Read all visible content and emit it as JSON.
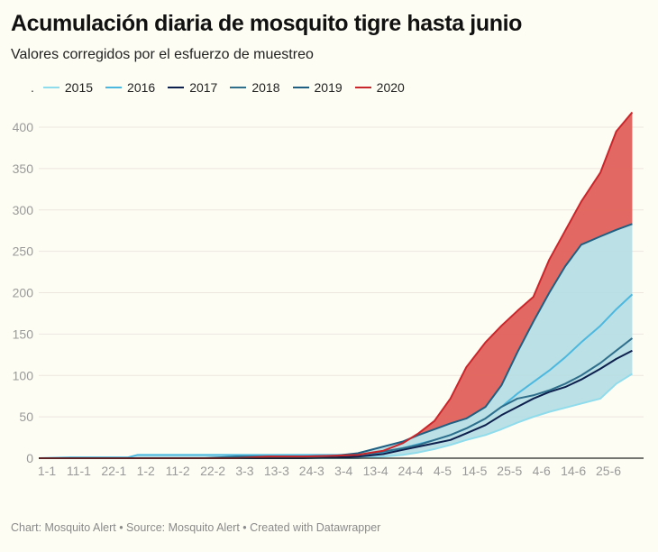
{
  "header": {
    "title": "Acumulación diaria de mosquito tigre hasta junio",
    "subtitle": "Valores corregidos por el esfuerzo de muestreo"
  },
  "legend": {
    "marker": ".",
    "items": [
      {
        "label": "2015",
        "color": "#8fdcec"
      },
      {
        "label": "2016",
        "color": "#4cb8e0"
      },
      {
        "label": "2017",
        "color": "#0d1f4d"
      },
      {
        "label": "2018",
        "color": "#2f6f8c"
      },
      {
        "label": "2019",
        "color": "#1e5f82"
      },
      {
        "label": "2020",
        "color": "#c9262b"
      }
    ]
  },
  "footer": "Chart: Mosquito Alert • Source: Mosquito Alert • Created with Datawrapper",
  "colors": {
    "background": "#fefdf4",
    "band_fill": "#b4dde3",
    "excess_fill": "#e0605b",
    "grid": "#ece6df",
    "axis": "#222222",
    "tick_text": "#9a9a9a"
  },
  "chart_data": {
    "type": "area",
    "title": "Acumulación diaria de mosquito tigre hasta junio",
    "subtitle": "Valores corregidos por el esfuerzo de muestreo",
    "xlabel": "",
    "ylabel": "",
    "x_unit": "day of year (0 = 1 January)",
    "xlim": [
      0,
      186
    ],
    "ylim": [
      0,
      420
    ],
    "y_ticks": [
      0,
      50,
      100,
      150,
      200,
      250,
      300,
      350,
      400
    ],
    "x_ticks": [
      {
        "day": 0,
        "label": "1-1"
      },
      {
        "day": 10,
        "label": "11-1"
      },
      {
        "day": 21,
        "label": "22-1"
      },
      {
        "day": 31,
        "label": "1-2"
      },
      {
        "day": 41,
        "label": "11-2"
      },
      {
        "day": 52,
        "label": "22-2"
      },
      {
        "day": 62,
        "label": "3-3"
      },
      {
        "day": 72,
        "label": "13-3"
      },
      {
        "day": 83,
        "label": "24-3"
      },
      {
        "day": 93,
        "label": "3-4"
      },
      {
        "day": 103,
        "label": "13-4"
      },
      {
        "day": 114,
        "label": "24-4"
      },
      {
        "day": 124,
        "label": "4-5"
      },
      {
        "day": 134,
        "label": "14-5"
      },
      {
        "day": 145,
        "label": "25-5"
      },
      {
        "day": 155,
        "label": "4-6"
      },
      {
        "day": 165,
        "label": "14-6"
      },
      {
        "day": 176,
        "label": "25-6"
      }
    ],
    "grid": true,
    "legend_position": "top-left",
    "band": "shaded range between min and max of 2015–2019; red area where 2020 exceeds the historical maximum",
    "x": [
      0,
      10,
      15,
      21,
      28,
      31,
      41,
      52,
      62,
      72,
      83,
      93,
      100,
      103,
      108,
      114,
      119,
      124,
      129,
      134,
      140,
      145,
      150,
      155,
      160,
      165,
      170,
      176,
      181,
      186
    ],
    "series": [
      {
        "name": "2015",
        "values": [
          0,
          0,
          0,
          0,
          0,
          0,
          0,
          0,
          0,
          0,
          0,
          0,
          0,
          1,
          2,
          4,
          7,
          11,
          16,
          22,
          28,
          35,
          43,
          50,
          56,
          61,
          66,
          72,
          90,
          102
        ]
      },
      {
        "name": "2016",
        "values": [
          0,
          1,
          1,
          1,
          1,
          4,
          4,
          4,
          4,
          4,
          4,
          4,
          4,
          5,
          7,
          12,
          17,
          22,
          28,
          36,
          48,
          62,
          78,
          92,
          106,
          122,
          140,
          160,
          180,
          198
        ]
      },
      {
        "name": "2017",
        "values": [
          0,
          0,
          0,
          0,
          0,
          0,
          0,
          0,
          0,
          0,
          0,
          1,
          2,
          3,
          5,
          10,
          14,
          18,
          22,
          30,
          40,
          52,
          62,
          72,
          80,
          86,
          95,
          108,
          120,
          130
        ]
      },
      {
        "name": "2018",
        "values": [
          0,
          0,
          0,
          0,
          0,
          0,
          0,
          0,
          2,
          2,
          2,
          3,
          4,
          5,
          8,
          12,
          16,
          22,
          28,
          36,
          48,
          62,
          72,
          76,
          82,
          90,
          100,
          115,
          130,
          145
        ]
      },
      {
        "name": "2019",
        "values": [
          0,
          0,
          0,
          0,
          0,
          0,
          0,
          0,
          0,
          1,
          1,
          3,
          6,
          9,
          14,
          20,
          28,
          35,
          42,
          48,
          62,
          88,
          128,
          165,
          200,
          232,
          258,
          268,
          276,
          283
        ]
      },
      {
        "name": "2020",
        "values": [
          0,
          0,
          0,
          0,
          0,
          0,
          0,
          0,
          0,
          2,
          2,
          3,
          4,
          6,
          9,
          18,
          30,
          45,
          72,
          110,
          140,
          160,
          178,
          195,
          240,
          275,
          310,
          345,
          395,
          418
        ]
      }
    ]
  }
}
